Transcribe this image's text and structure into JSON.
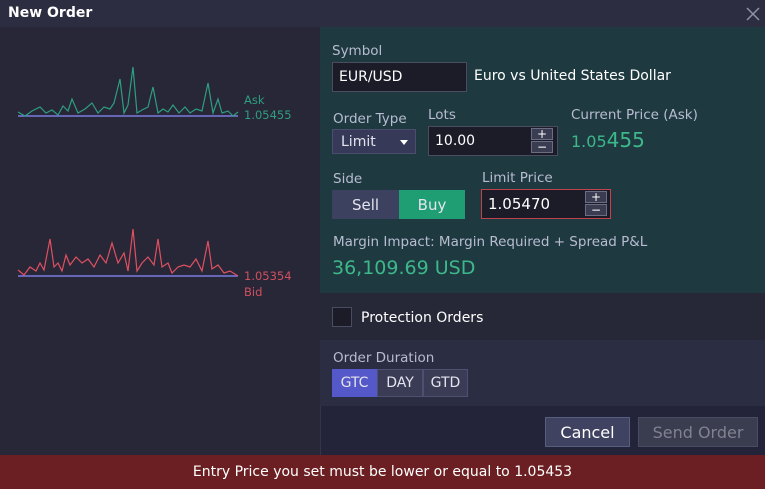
{
  "header": {
    "title": "New Order"
  },
  "ticker": {
    "ask_label": "Ask",
    "ask_price": "1.05455",
    "bid_price": "1.05354",
    "bid_label": "Bid"
  },
  "form": {
    "symbol_label": "Symbol",
    "symbol": "EUR/USD",
    "symbol_description": "Euro vs United States Dollar",
    "order_type_label": "Order Type",
    "order_type": "Limit",
    "lots_label": "Lots",
    "lots": "10.00",
    "increment": "+",
    "decrement": "−",
    "current_price_label": "Current Price (Ask)",
    "current_price_main": "1.05",
    "current_price_pips": "455",
    "side_label": "Side",
    "sell": "Sell",
    "buy": "Buy",
    "limit_price_label": "Limit Price",
    "limit_price": "1.05470",
    "margin_label": "Margin Impact: Margin Required + Spread P&L",
    "margin_value": "36,109.69 USD",
    "protection_orders": "Protection Orders",
    "duration_label": "Order Duration",
    "durations": [
      "GTC",
      "DAY",
      "GTD"
    ]
  },
  "buttons": {
    "cancel": "Cancel",
    "send": "Send Order"
  },
  "error": "Entry Price you set must be lower or equal to 1.05453"
}
